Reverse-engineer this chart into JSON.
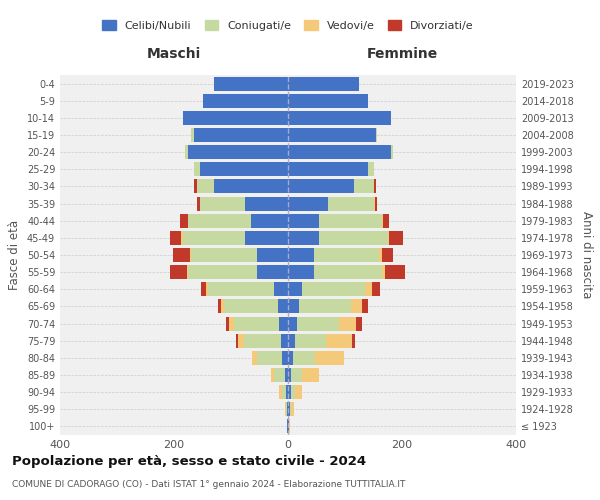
{
  "age_groups": [
    "100+",
    "95-99",
    "90-94",
    "85-89",
    "80-84",
    "75-79",
    "70-74",
    "65-69",
    "60-64",
    "55-59",
    "50-54",
    "45-49",
    "40-44",
    "35-39",
    "30-34",
    "25-29",
    "20-24",
    "15-19",
    "10-14",
    "5-9",
    "0-4"
  ],
  "birth_years": [
    "≤ 1923",
    "1924-1928",
    "1929-1933",
    "1934-1938",
    "1939-1943",
    "1944-1948",
    "1949-1953",
    "1954-1958",
    "1959-1963",
    "1964-1968",
    "1969-1973",
    "1974-1978",
    "1979-1983",
    "1984-1988",
    "1989-1993",
    "1994-1998",
    "1999-2003",
    "2004-2008",
    "2009-2013",
    "2014-2018",
    "2019-2023"
  ],
  "male": {
    "celibi": [
      2,
      2,
      3,
      5,
      10,
      12,
      15,
      18,
      25,
      55,
      55,
      75,
      65,
      75,
      130,
      155,
      175,
      165,
      185,
      150,
      130
    ],
    "coniugati": [
      0,
      2,
      8,
      20,
      45,
      65,
      80,
      95,
      115,
      120,
      115,
      110,
      110,
      80,
      30,
      10,
      5,
      5,
      0,
      0,
      0
    ],
    "vedovi": [
      0,
      2,
      5,
      5,
      8,
      10,
      8,
      5,
      3,
      2,
      2,
      2,
      0,
      0,
      0,
      0,
      0,
      0,
      0,
      0,
      0
    ],
    "divorziati": [
      0,
      0,
      0,
      0,
      0,
      5,
      5,
      5,
      10,
      30,
      30,
      20,
      15,
      5,
      5,
      0,
      0,
      0,
      0,
      0,
      0
    ]
  },
  "female": {
    "nubili": [
      2,
      3,
      5,
      5,
      8,
      12,
      15,
      20,
      25,
      45,
      45,
      55,
      55,
      70,
      115,
      140,
      180,
      155,
      180,
      140,
      125
    ],
    "coniugate": [
      0,
      2,
      8,
      20,
      40,
      55,
      75,
      90,
      110,
      120,
      115,
      120,
      110,
      80,
      35,
      10,
      5,
      2,
      0,
      0,
      0
    ],
    "vedove": [
      2,
      5,
      12,
      30,
      50,
      45,
      30,
      20,
      12,
      5,
      5,
      2,
      2,
      2,
      0,
      0,
      0,
      0,
      0,
      0,
      0
    ],
    "divorziate": [
      0,
      0,
      0,
      0,
      0,
      5,
      10,
      10,
      15,
      35,
      20,
      25,
      10,
      5,
      5,
      0,
      0,
      0,
      0,
      0,
      0
    ]
  },
  "colors": {
    "celibi": "#4472c4",
    "coniugati": "#c5d9a0",
    "vedovi": "#f5c97a",
    "divorziati": "#c0392b"
  },
  "title": "Popolazione per età, sesso e stato civile - 2024",
  "subtitle": "COMUNE DI CADORAGO (CO) - Dati ISTAT 1° gennaio 2024 - Elaborazione TUTTITALIA.IT",
  "xlabel_left": "Maschi",
  "xlabel_right": "Femmine",
  "ylabel_left": "Fasce di età",
  "ylabel_right": "Anni di nascita",
  "xlim": 400,
  "legend_labels": [
    "Celibi/Nubili",
    "Coniugati/e",
    "Vedovi/e",
    "Divorziati/e"
  ],
  "bg_color": "#ffffff",
  "grid_color": "#cccccc"
}
